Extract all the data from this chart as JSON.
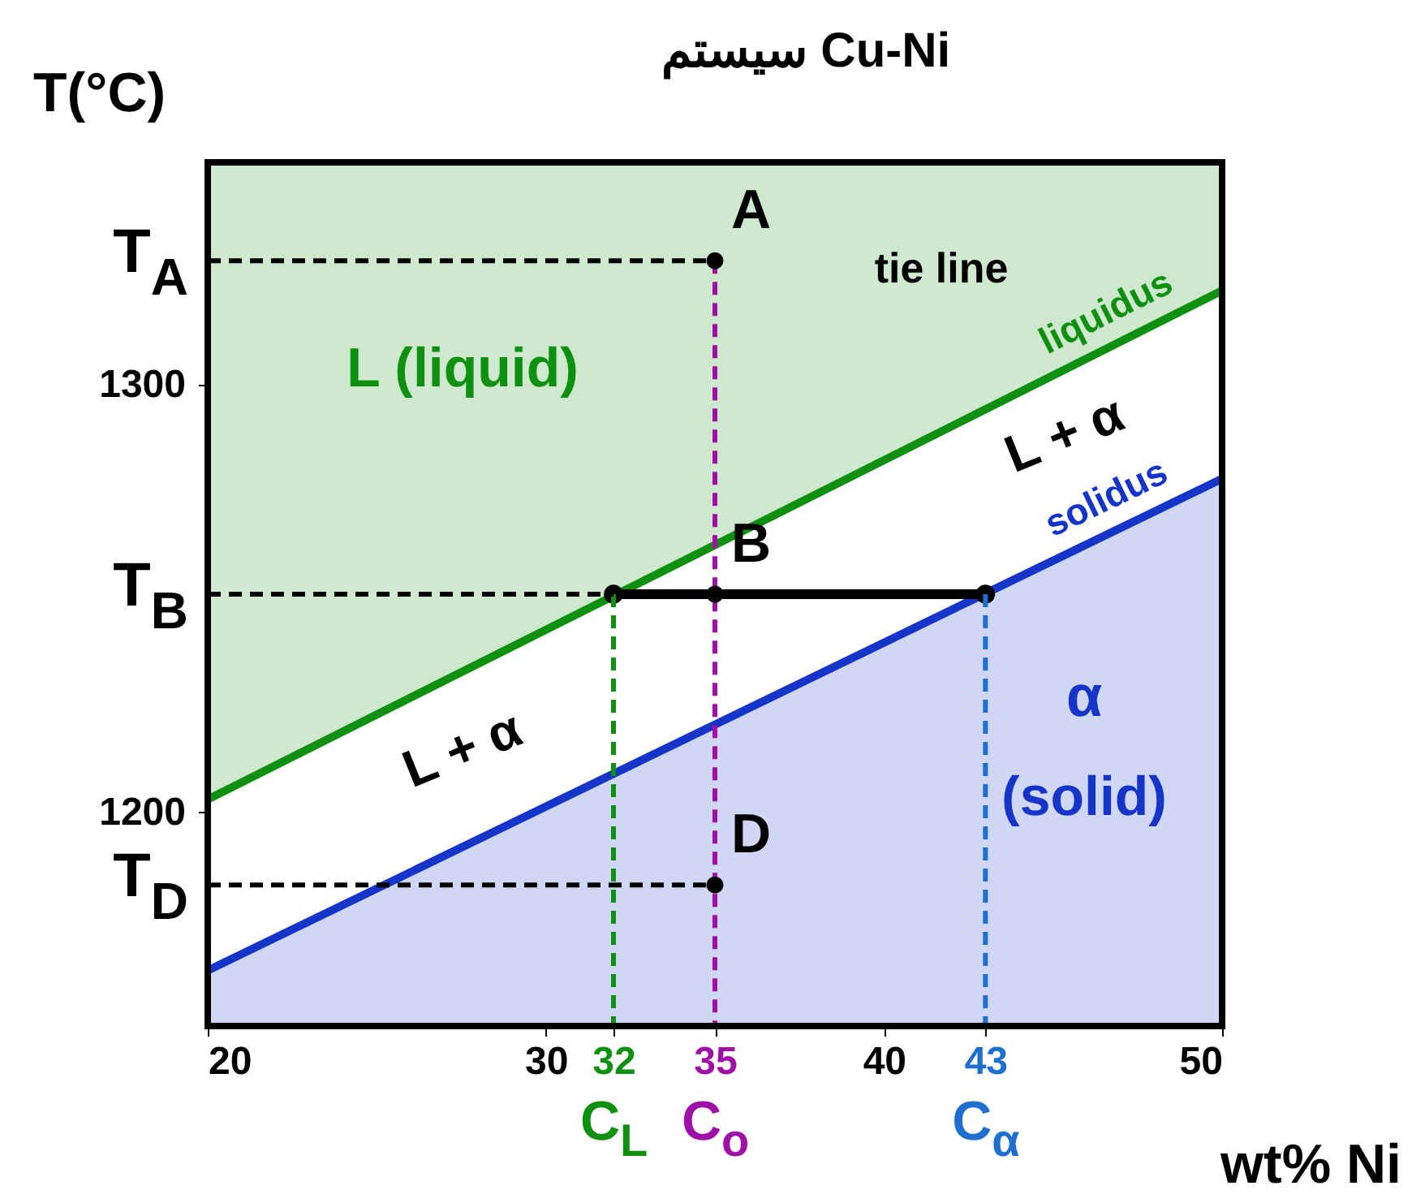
{
  "chart_data": {
    "type": "line",
    "title": "سیستم Cu-Ni",
    "xlabel": "wt% Ni",
    "ylabel": "T(°C)",
    "xlim": [
      20,
      50
    ],
    "ylim": [
      1150,
      1352
    ],
    "xticks": [
      20,
      30,
      32,
      35,
      40,
      43,
      50
    ],
    "yticks": [
      1300,
      1200
    ],
    "series": [
      {
        "name": "liquidus",
        "color": "#109010",
        "x": [
          20,
          50
        ],
        "values": [
          1203,
          1322
        ],
        "lower": [
          1203,
          1322
        ],
        "upper": [
          1352,
          1352
        ]
      },
      {
        "name": "solidus",
        "color": "#1535c8",
        "x": [
          20,
          50
        ],
        "values": [
          1163,
          1278
        ],
        "lower": [
          1150,
          1150
        ],
        "upper": [
          1163,
          1278
        ]
      },
      {
        "color": "#000000",
        "x": [
          32,
          43
        ],
        "values": [
          1251,
          1251
        ],
        "marker": "circle"
      },
      {
        "color": "#a010a8",
        "x": [
          35,
          35
        ],
        "values": [
          1329,
          1150
        ],
        "line_style": "dashed"
      },
      {
        "color": "#109010",
        "x": [
          32,
          32
        ],
        "values": [
          1251,
          1150
        ],
        "line_style": "dashed"
      },
      {
        "color": "#1f6fd0",
        "x": [
          43,
          43
        ],
        "values": [
          1251,
          1150
        ],
        "line_style": "dashed"
      },
      {
        "color": "#000000",
        "x": [
          20,
          35
        ],
        "values": [
          1329,
          1329
        ],
        "line_style": "dashed"
      },
      {
        "color": "#000000",
        "x": [
          20,
          32
        ],
        "values": [
          1251,
          1251
        ],
        "line_style": "dashed"
      },
      {
        "color": "#000000",
        "x": [
          20,
          35
        ],
        "values": [
          1183,
          1183
        ],
        "line_style": "dashed"
      },
      {
        "type": "scatter",
        "color": "#000000",
        "x": [
          35,
          35,
          35
        ],
        "values": [
          1329,
          1251,
          1183
        ],
        "marker": "circle"
      }
    ],
    "annotations": [
      {
        "text": "T$_{A}$",
        "x": 20,
        "y": 1329
      },
      {
        "text": "T$_{B}$",
        "x": 20,
        "y": 1251
      },
      {
        "text": "T$_{D}$",
        "x": 20,
        "y": 1183
      },
      {
        "text": "A",
        "x": 35,
        "y": 1329
      },
      {
        "text": "B",
        "x": 35,
        "y": 1251
      },
      {
        "text": "D",
        "x": 35,
        "y": 1183
      },
      "tie line",
      "L (liquid)",
      "L + α",
      "L + α",
      "α",
      "(solid)",
      {
        "text": "C$_{L}$",
        "x": 32,
        "y": 1150
      },
      {
        "text": "C$_{o}$",
        "x": 35,
        "y": 1150
      },
      {
        "text": "C$_{α}$",
        "x": 43,
        "y": 1150
      }
    ]
  }
}
